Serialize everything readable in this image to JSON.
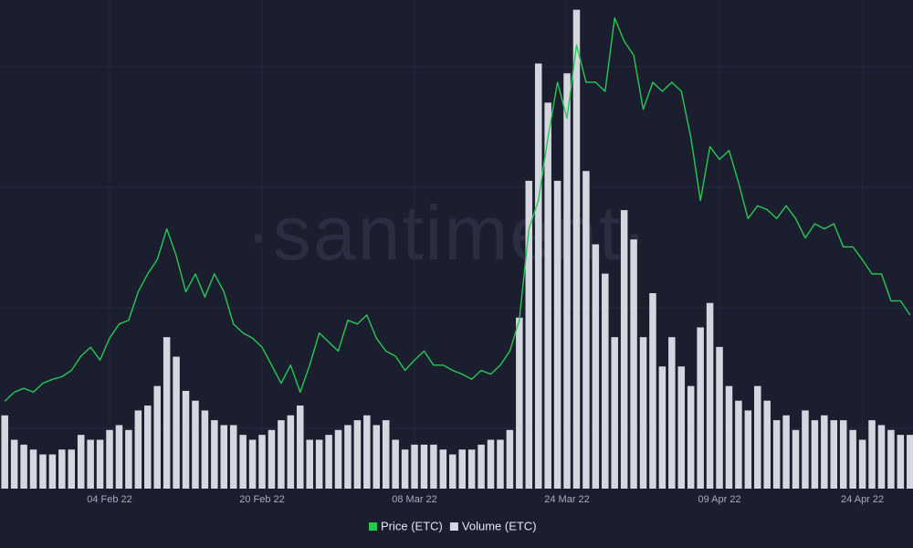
{
  "chart_data": {
    "type": "line",
    "watermark": "·santiment·",
    "categories": [
      null,
      null,
      null,
      null,
      null,
      null,
      null,
      null,
      null,
      null,
      null,
      "04 Feb 22",
      null,
      null,
      null,
      null,
      null,
      null,
      null,
      null,
      null,
      null,
      null,
      null,
      null,
      null,
      null,
      "20 Feb 22",
      null,
      null,
      null,
      null,
      null,
      null,
      null,
      null,
      null,
      null,
      null,
      null,
      null,
      null,
      null,
      "08 Mar 22",
      null,
      null,
      null,
      null,
      null,
      null,
      null,
      null,
      null,
      null,
      null,
      null,
      null,
      null,
      null,
      "24 Mar 22",
      null,
      null,
      null,
      null,
      null,
      null,
      null,
      null,
      null,
      null,
      null,
      null,
      null,
      null,
      null,
      "09 Apr 22",
      null,
      null,
      null,
      null,
      null,
      null,
      null,
      null,
      null,
      null,
      null,
      null,
      null,
      null,
      "24 Apr 22",
      null,
      null,
      null,
      null,
      null
    ],
    "ylim": [
      15,
      53
    ],
    "y2lim": [
      0,
      100
    ],
    "grid": true,
    "series": [
      {
        "name": "Volume (ETC)",
        "type": "bar",
        "axis": "y2",
        "color": "#d4d6e0",
        "values": [
          15,
          10,
          9,
          8,
          7,
          7,
          8,
          8,
          11,
          10,
          10,
          12,
          13,
          12,
          16,
          17,
          21,
          31,
          27,
          20,
          18,
          16,
          14,
          13,
          13,
          11,
          10,
          11,
          12,
          14,
          15,
          17,
          10,
          10,
          11,
          12,
          13,
          14,
          15,
          13,
          14,
          10,
          8,
          9,
          9,
          9,
          8,
          7,
          8,
          8,
          9,
          10,
          10,
          12,
          35,
          63,
          87,
          79,
          63,
          85,
          98,
          65,
          50,
          44,
          31,
          57,
          51,
          31,
          40,
          25,
          31,
          25,
          21,
          33,
          38,
          29,
          21,
          18,
          16,
          21,
          18,
          14,
          15,
          12,
          16,
          14,
          15,
          14,
          14,
          12,
          10,
          14,
          13,
          12,
          11,
          11
        ]
      },
      {
        "name": "Price (ETC)",
        "type": "line",
        "color": "#26c953",
        "values": [
          21.8,
          22.5,
          22.8,
          22.5,
          23.2,
          23.5,
          23.7,
          24.2,
          25.3,
          26.0,
          25.0,
          26.7,
          27.8,
          28.1,
          30.3,
          31.7,
          32.8,
          35.2,
          33.1,
          30.3,
          31.7,
          29.9,
          31.7,
          30.3,
          27.8,
          27.1,
          26.7,
          26.0,
          24.6,
          23.2,
          24.6,
          22.5,
          24.6,
          27.1,
          26.4,
          25.7,
          28.1,
          27.8,
          28.5,
          26.7,
          25.7,
          25.3,
          24.2,
          25.0,
          25.7,
          24.6,
          24.6,
          24.2,
          23.9,
          23.5,
          24.2,
          23.9,
          24.6,
          25.7,
          28.1,
          35.2,
          37.4,
          42.3,
          46.6,
          43.8,
          49.5,
          46.6,
          46.6,
          45.9,
          51.6,
          49.8,
          48.7,
          44.5,
          46.6,
          45.9,
          46.6,
          45.9,
          42.3,
          37.4,
          41.6,
          40.6,
          41.3,
          38.8,
          36.0,
          37.0,
          36.7,
          36.0,
          37.0,
          36.0,
          34.5,
          35.6,
          35.2,
          35.6,
          33.8,
          33.8,
          32.8,
          31.7,
          31.7,
          29.6,
          29.6,
          28.5
        ]
      }
    ]
  }
}
